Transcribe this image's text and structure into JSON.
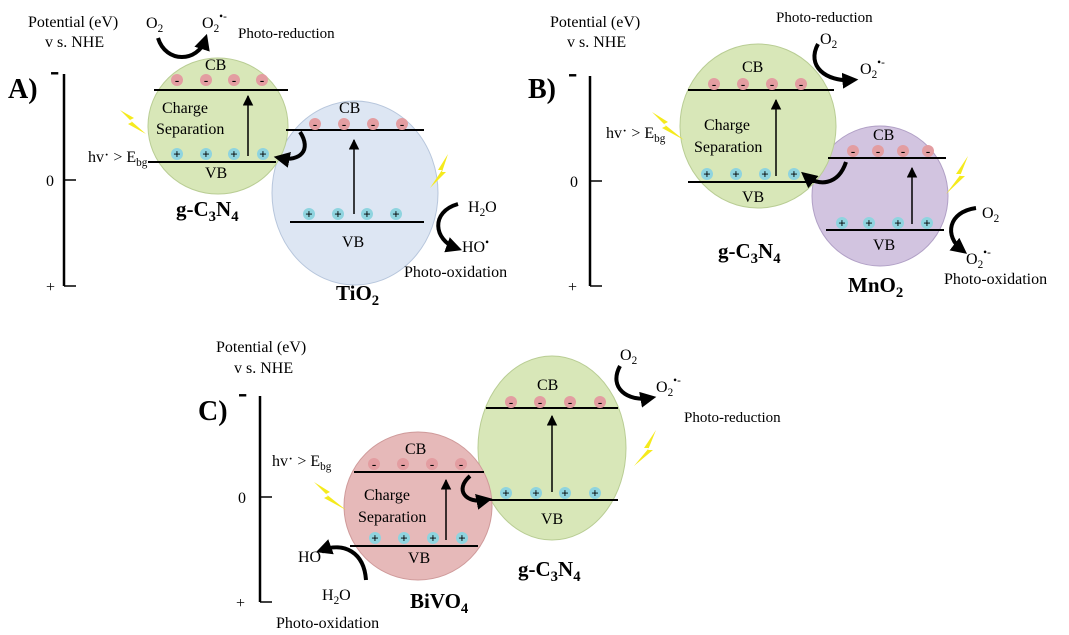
{
  "potential_axis": {
    "title_line1": "Potential (eV)",
    "title_line2": "v s. NHE",
    "minus": "-",
    "zero": "0",
    "plus": "+"
  },
  "bands": {
    "cb": "CB",
    "vb": "VB",
    "hole": "+",
    "electron": "-"
  },
  "colors": {
    "gcn": "#d8e7b8",
    "tio2": "#dde6f3",
    "mno2": "#d2c4e0",
    "bivo4": "#e6b9b9",
    "electron_dot": "#e39da1",
    "hole_dot": "#8fd4df",
    "lightning": "#f5ea1c"
  },
  "labels": {
    "charge": "Charge",
    "separation": "Separation",
    "photo_reduction": "Photo-reduction",
    "photo_oxidation": "Photo-oxidation",
    "hv_prefix": "hv",
    "hv_dot": "·",
    "hv_gt": " > E",
    "hv_sub": "bg",
    "o2": "O",
    "o2_sub": "2",
    "o2rad": "O",
    "o2rad_sub": "2",
    "o2rad_sup": "•-",
    "h2o_h": "H",
    "h2o_sub": "2",
    "h2o_o": "O",
    "ho": "HO",
    "ho_dot": "•"
  },
  "panels": {
    "A": {
      "label": "A)",
      "materials": {
        "gcn": "g-C",
        "gcn_sub3": "3",
        "gcn_n": "N",
        "gcn_sub4": "4",
        "other": "TiO",
        "other_sub": "2"
      }
    },
    "B": {
      "label": "B)",
      "materials": {
        "gcn": "g-C",
        "gcn_sub3": "3",
        "gcn_n": "N",
        "gcn_sub4": "4",
        "other": "MnO",
        "other_sub": "2"
      }
    },
    "C": {
      "label": "C)",
      "materials": {
        "gcn": "g-C",
        "gcn_sub3": "3",
        "gcn_n": "N",
        "gcn_sub4": "4",
        "other": "BiVO",
        "other_sub": "4"
      }
    }
  }
}
